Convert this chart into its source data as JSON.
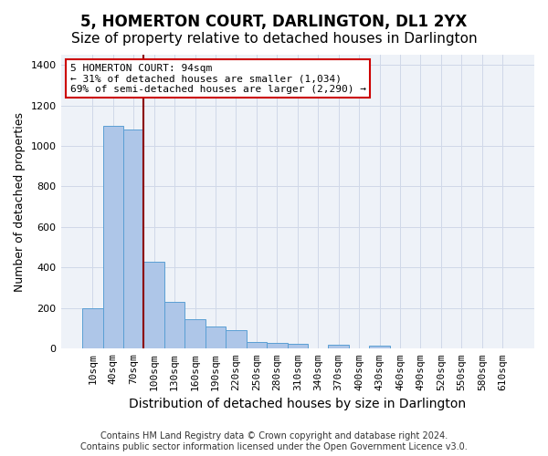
{
  "title": "5, HOMERTON COURT, DARLINGTON, DL1 2YX",
  "subtitle": "Size of property relative to detached houses in Darlington",
  "xlabel": "Distribution of detached houses by size in Darlington",
  "ylabel": "Number of detached properties",
  "bin_labels": [
    "10sqm",
    "40sqm",
    "70sqm",
    "100sqm",
    "130sqm",
    "160sqm",
    "190sqm",
    "220sqm",
    "250sqm",
    "280sqm",
    "310sqm",
    "340sqm",
    "370sqm",
    "400sqm",
    "430sqm",
    "460sqm",
    "490sqm",
    "520sqm",
    "550sqm",
    "580sqm",
    "610sqm"
  ],
  "bar_values": [
    200,
    1100,
    1080,
    430,
    230,
    145,
    110,
    90,
    35,
    30,
    25,
    0,
    20,
    0,
    15,
    0,
    0,
    0,
    0,
    0,
    0
  ],
  "bar_color": "#aec6e8",
  "bar_edge_color": "#5a9fd4",
  "property_bin_index": 2,
  "annotation_line1": "5 HOMERTON COURT: 94sqm",
  "annotation_line2": "← 31% of detached houses are smaller (1,034)",
  "annotation_line3": "69% of semi-detached houses are larger (2,290) →",
  "annotation_box_color": "#ffffff",
  "annotation_box_edge_color": "#cc0000",
  "vline_color": "#8b0000",
  "ylim": [
    0,
    1450
  ],
  "yticks": [
    0,
    200,
    400,
    600,
    800,
    1000,
    1200,
    1400
  ],
  "grid_color": "#d0d8e8",
  "background_color": "#eef2f8",
  "footer_line1": "Contains HM Land Registry data © Crown copyright and database right 2024.",
  "footer_line2": "Contains public sector information licensed under the Open Government Licence v3.0.",
  "title_fontsize": 12,
  "subtitle_fontsize": 11,
  "xlabel_fontsize": 10,
  "ylabel_fontsize": 9,
  "tick_fontsize": 8,
  "annotation_fontsize": 8,
  "footer_fontsize": 7
}
